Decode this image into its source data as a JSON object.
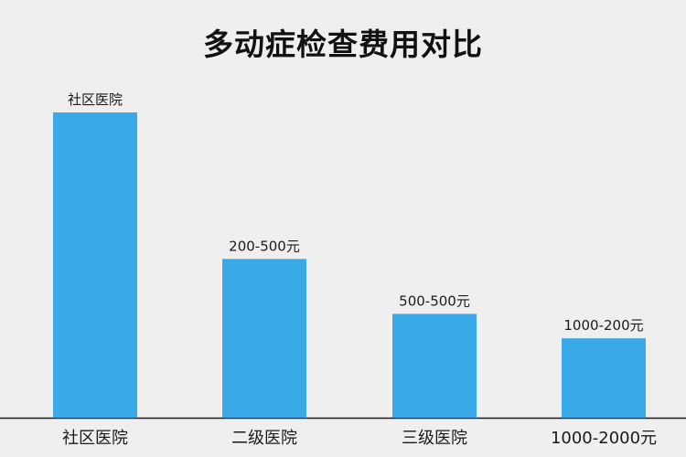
{
  "chart_data": {
    "type": "bar",
    "title": "多动症检查费用对比",
    "categories": [
      "社区医院",
      "二级医院",
      "三级医院",
      "1000-2000元"
    ],
    "values": [
      100,
      52,
      34,
      26
    ],
    "bar_labels": [
      "社区医院",
      "200-500元",
      "500-500元",
      "1000-200元"
    ],
    "xlabel": "",
    "ylabel": "",
    "ylim": [
      0,
      100
    ],
    "grid": false,
    "legend": "none",
    "bar_color": "#3aa9e8"
  }
}
